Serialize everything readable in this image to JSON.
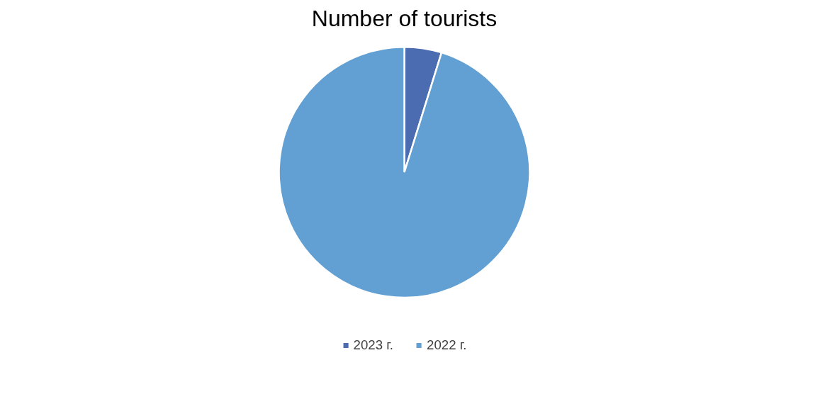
{
  "chart_data": {
    "type": "pie",
    "title": "Number of tourists",
    "categories": [
      "2023 г.",
      "2022 г."
    ],
    "values": [
      4.8,
      95.2
    ],
    "colors": [
      "#4b6cb0",
      "#629fd3"
    ],
    "legend": "bottom"
  }
}
